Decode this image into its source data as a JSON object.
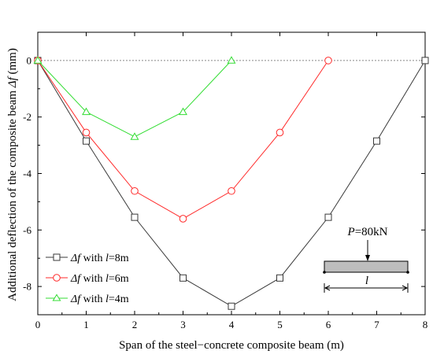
{
  "chart_data": {
    "type": "line",
    "title": "",
    "xlabel": "Span of the steel−concrete composite beam (m)",
    "ylabel": {
      "prefix": "Additional deflection of the composite beam ",
      "symbol": "Δf",
      "suffix": " (mm)"
    },
    "xlim": [
      0,
      8
    ],
    "ylim": [
      -9,
      1
    ],
    "xticks": [
      "0",
      "1",
      "2",
      "3",
      "4",
      "5",
      "6",
      "7",
      "8"
    ],
    "yticks": [
      "0",
      "-2",
      "-4",
      "-6",
      "-8"
    ],
    "grid": false,
    "zero_reference_line": true,
    "legend_position": "lower-left",
    "series": [
      {
        "name": "Δf with l=8m",
        "label": {
          "a": "Δf",
          "b": " with ",
          "c": "l",
          "d": "=8m"
        },
        "color": "#3a3a3a",
        "marker": "square",
        "x": [
          0,
          1,
          2,
          3,
          4,
          5,
          6,
          7,
          8
        ],
        "y": [
          0,
          -2.85,
          -5.55,
          -7.7,
          -8.7,
          -7.7,
          -5.55,
          -2.85,
          0
        ]
      },
      {
        "name": "Δf with l=6m",
        "label": {
          "a": "Δf",
          "b": " with ",
          "c": "l",
          "d": "=6m"
        },
        "color": "#ff2a2a",
        "marker": "circle",
        "x": [
          0,
          1,
          2,
          3,
          4,
          5,
          6
        ],
        "y": [
          0,
          -2.55,
          -4.62,
          -5.6,
          -4.62,
          -2.55,
          0
        ]
      },
      {
        "name": "Δf with l=4m",
        "label": {
          "a": "Δf",
          "b": " with ",
          "c": "l",
          "d": "=4m"
        },
        "color": "#33dd33",
        "marker": "triangle",
        "x": [
          0,
          1,
          2,
          3,
          4
        ],
        "y": [
          0,
          -1.82,
          -2.7,
          -1.82,
          0
        ]
      }
    ],
    "inset": {
      "load_label": {
        "p": "P",
        "rest": "=80kN"
      },
      "span_label": "l"
    }
  }
}
